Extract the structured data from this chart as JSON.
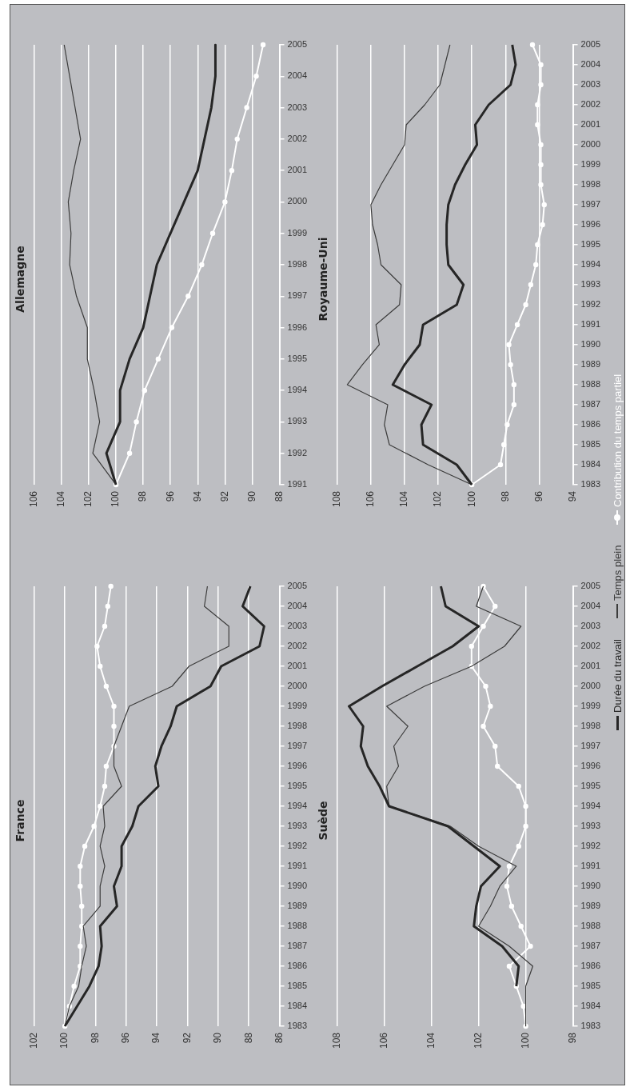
{
  "chart_data": [
    {
      "type": "line",
      "title": "France",
      "orientation": "horizontal",
      "categories": [
        "2005",
        "2004",
        "2003",
        "2002",
        "2001",
        "2000",
        "1999",
        "1998",
        "1997",
        "1996",
        "1995",
        "1994",
        "1993",
        "1992",
        "1991",
        "1990",
        "1989",
        "1988",
        "1987",
        "1986",
        "1985",
        "1984",
        "1983"
      ],
      "series": [
        {
          "name": "Durée du travail",
          "color": "#262626",
          "marker": "none",
          "values": [
            87.9,
            88.4,
            87.0,
            87.3,
            89.8,
            90.5,
            92.7,
            93.1,
            93.7,
            94.1,
            93.9,
            95.2,
            95.6,
            96.3,
            96.3,
            96.8,
            96.6,
            97.7,
            97.6,
            97.8,
            98.4,
            99.2,
            100
          ]
        },
        {
          "name": "Temps plein",
          "color": "#3c3c3c",
          "marker": "none",
          "values": [
            90.7,
            90.9,
            89.3,
            89.3,
            91.9,
            93.0,
            95.8,
            96.3,
            96.8,
            96.8,
            96.3,
            97.5,
            97.4,
            97.7,
            97.4,
            97.7,
            97.7,
            98.8,
            98.6,
            98.9,
            99.1,
            99.7,
            100
          ]
        },
        {
          "name": "Contribution du temps partiel",
          "color": "#ffffff",
          "marker": "circle",
          "values": [
            97.0,
            97.2,
            97.4,
            97.9,
            97.7,
            97.3,
            96.8,
            96.8,
            96.8,
            97.3,
            97.4,
            97.7,
            98.1,
            98.7,
            99.0,
            99.0,
            98.9,
            98.9,
            99.0,
            99.0,
            99.4,
            99.7,
            100
          ]
        }
      ],
      "xlim": [
        102,
        86
      ],
      "xticks": [
        102,
        100,
        98,
        96,
        94,
        92,
        90,
        88,
        86
      ],
      "grid": "x",
      "legend": "right"
    },
    {
      "type": "line",
      "title": "Allemagne",
      "orientation": "horizontal",
      "categories": [
        "2005",
        "2004",
        "2003",
        "2002",
        "2001",
        "2000",
        "1999",
        "1998",
        "1997",
        "1996",
        "1995",
        "1994",
        "1993",
        "1992",
        "1991"
      ],
      "series": [
        {
          "color": "#262626",
          "marker": "none",
          "values": [
            92.7,
            92.7,
            93.0,
            93.5,
            94.0,
            95.0,
            96.0,
            97.0,
            97.5,
            98.0,
            99.0,
            99.7,
            99.7,
            100.7,
            100
          ]
        },
        {
          "color": "#3c3c3c",
          "marker": "none",
          "values": [
            103.8,
            103.4,
            103.0,
            102.6,
            103.1,
            103.5,
            103.3,
            103.4,
            102.9,
            102.1,
            102.1,
            101.6,
            101.2,
            101.7,
            100
          ]
        },
        {
          "color": "#ffffff",
          "marker": "circle",
          "values": [
            89.2,
            89.7,
            90.4,
            91.1,
            91.5,
            92.0,
            92.9,
            93.7,
            94.7,
            95.9,
            96.9,
            97.9,
            98.5,
            99.0,
            100
          ]
        }
      ],
      "xlim": [
        106,
        88
      ],
      "xticks": [
        106,
        104,
        102,
        100,
        98,
        96,
        94,
        92,
        90,
        88
      ],
      "grid": "x"
    },
    {
      "type": "line",
      "title": "Suède",
      "orientation": "horizontal",
      "categories": [
        "2005",
        "2004",
        "2003",
        "2002",
        "2001",
        "2000",
        "1999",
        "1998",
        "1997",
        "1996",
        "1995",
        "1994",
        "1993",
        "1992",
        "1991",
        "1990",
        "1989",
        "1988",
        "1987",
        "1986",
        "1985",
        "1984",
        "1983"
      ],
      "series": [
        {
          "color": "#262626",
          "marker": "none",
          "values": [
            103.6,
            103.4,
            102.0,
            103.1,
            104.6,
            106.1,
            107.5,
            106.9,
            107.0,
            106.7,
            106.2,
            105.8,
            103.3,
            102.2,
            101.1,
            101.9,
            102.1,
            102.2,
            101.0,
            100.3,
            100.4,
            null,
            null
          ]
        },
        {
          "color": "#3c3c3c",
          "marker": "none",
          "values": [
            101.8,
            102.1,
            100.2,
            100.9,
            102.3,
            104.3,
            105.9,
            105.0,
            105.6,
            105.4,
            105.9,
            105.8,
            103.2,
            102.0,
            100.4,
            101.1,
            101.5,
            102.0,
            100.7,
            99.7,
            100,
            100,
            100
          ]
        },
        {
          "color": "#ffffff",
          "marker": "circle",
          "values": [
            101.8,
            101.3,
            101.8,
            102.3,
            102.3,
            101.7,
            101.5,
            101.8,
            101.3,
            101.2,
            100.3,
            100.0,
            100.0,
            100.3,
            100.7,
            100.8,
            100.6,
            100.2,
            99.8,
            100.7,
            100.4,
            100.1,
            100
          ]
        }
      ],
      "xlim": [
        108,
        98
      ],
      "xticks": [
        108,
        106,
        104,
        102,
        100,
        98
      ],
      "grid": "x"
    },
    {
      "type": "line",
      "title": "Royaume-Uni",
      "orientation": "horizontal",
      "categories": [
        "2005",
        "2004",
        "2003",
        "2002",
        "2001",
        "2000",
        "1999",
        "1998",
        "1997",
        "1996",
        "1995",
        "1994",
        "1993",
        "1992",
        "1991",
        "1990",
        "1989",
        "1988",
        "1987",
        "1986",
        "1985",
        "1984",
        "1983"
      ],
      "series": [
        {
          "color": "#262626",
          "marker": "none",
          "values": [
            97.6,
            97.4,
            97.7,
            99.0,
            99.8,
            99.7,
            100.4,
            101.0,
            101.4,
            101.5,
            101.5,
            101.4,
            100.5,
            100.9,
            102.9,
            103.1,
            104.0,
            104.7,
            102.4,
            103.0,
            102.9,
            100.9,
            100
          ]
        },
        {
          "color": "#3c3c3c",
          "marker": "none",
          "values": [
            101.3,
            101.6,
            101.9,
            102.8,
            103.9,
            104.0,
            104.7,
            105.4,
            106.0,
            105.9,
            105.6,
            105.4,
            104.2,
            104.3,
            105.7,
            105.5,
            106.5,
            107.4,
            105.0,
            105.2,
            104.9,
            102.6,
            100
          ]
        },
        {
          "color": "#ffffff",
          "marker": "circle",
          "values": [
            96.4,
            95.9,
            95.9,
            96.1,
            96.1,
            95.9,
            95.9,
            95.9,
            95.7,
            95.8,
            96.1,
            96.2,
            96.5,
            96.8,
            97.3,
            97.8,
            97.7,
            97.5,
            97.5,
            97.9,
            98.1,
            98.3,
            100
          ]
        }
      ],
      "xlim": [
        108,
        94
      ],
      "xticks": [
        108,
        106,
        104,
        102,
        100,
        98,
        96,
        94
      ],
      "grid": "x"
    }
  ]
}
